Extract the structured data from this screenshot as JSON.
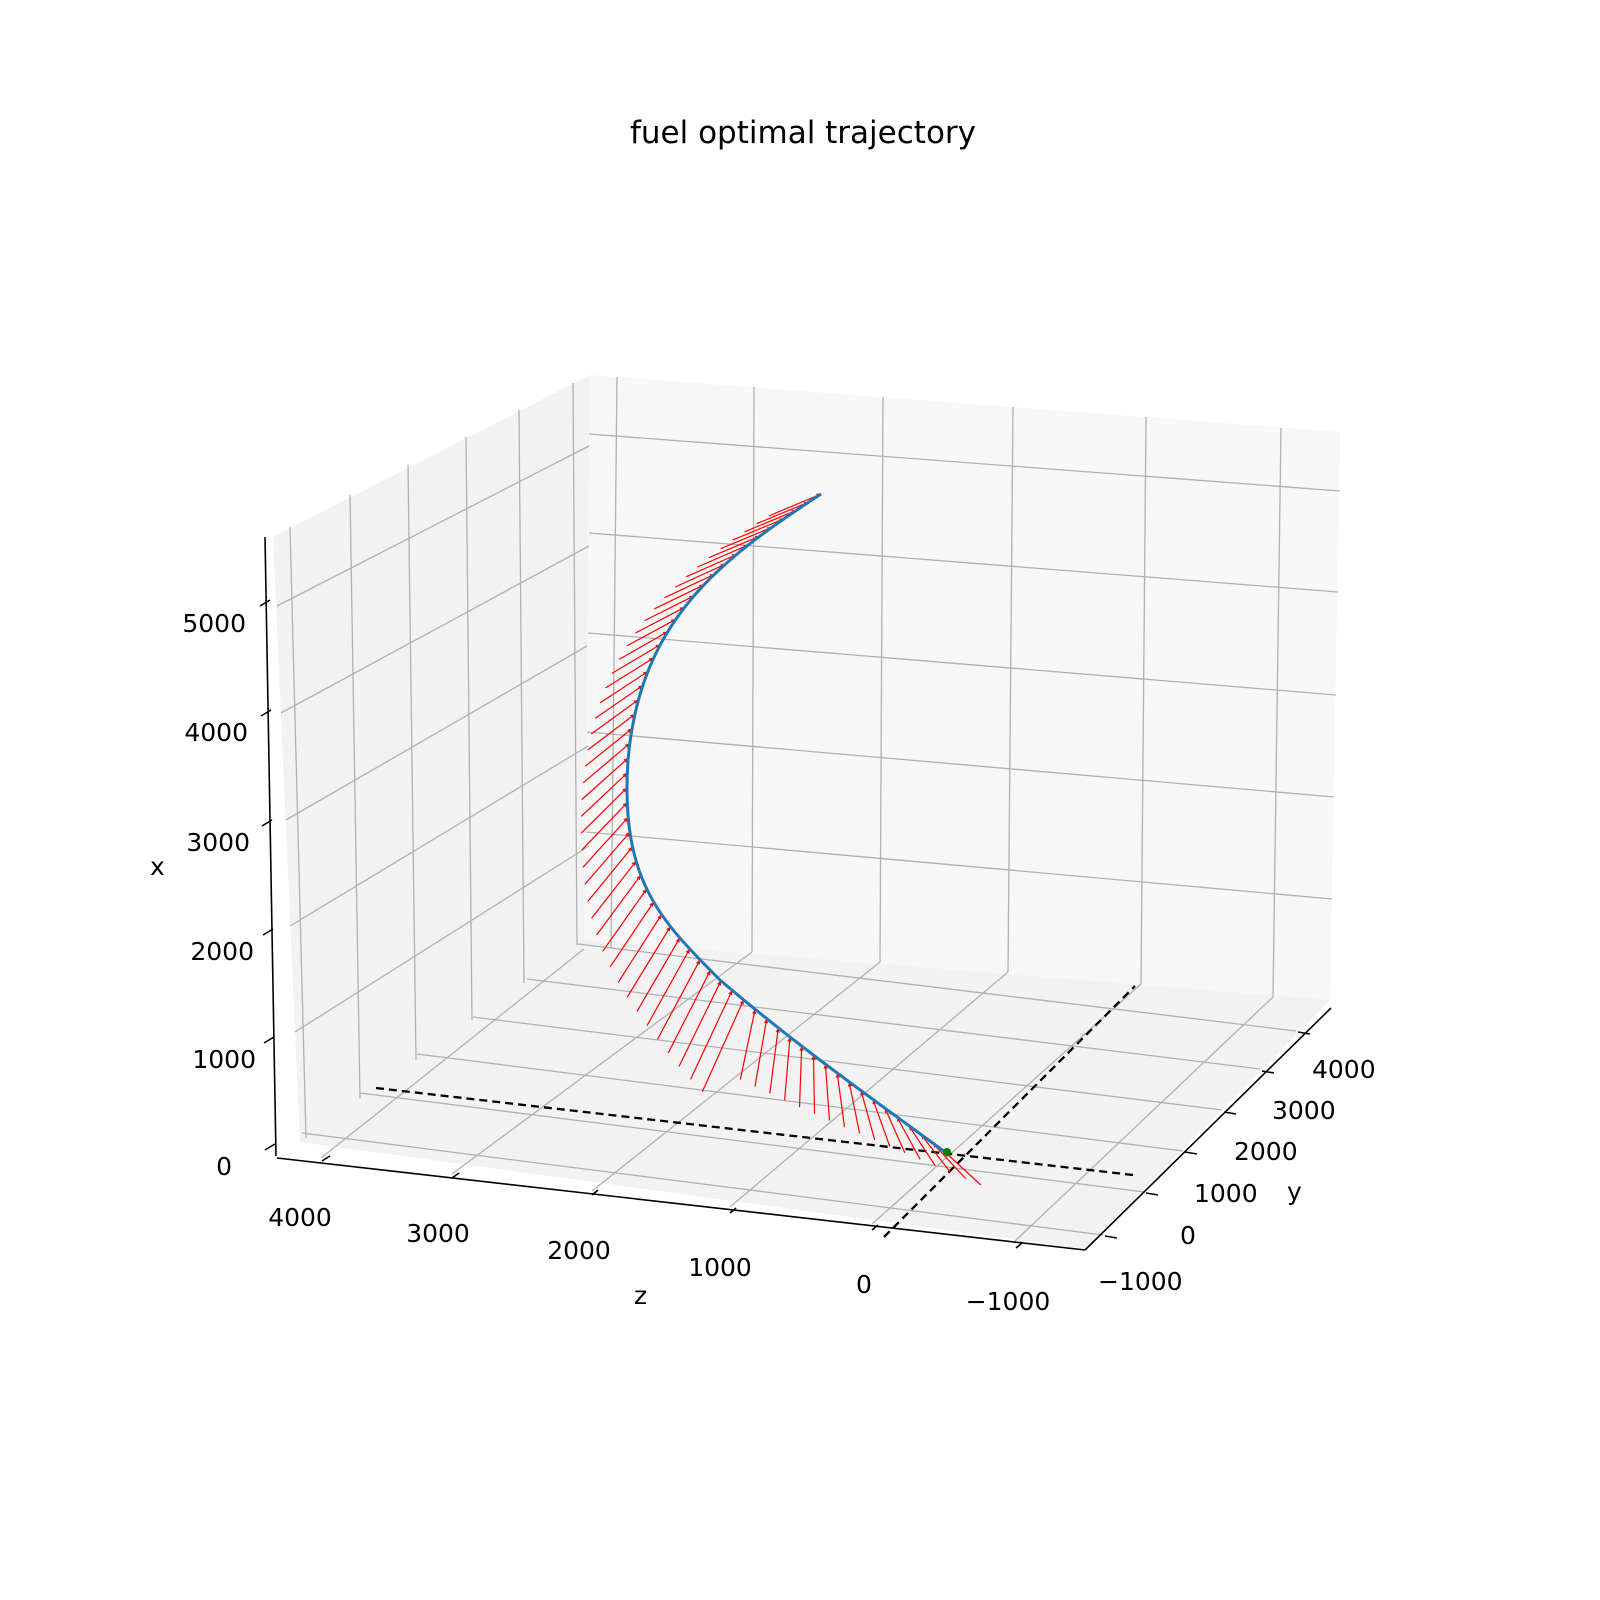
{
  "chart_data": {
    "type": "line3d",
    "title": "fuel optimal trajectory",
    "xlabel": "x",
    "ylabel": "y",
    "zlabel": "z",
    "x_ticks": [
      "0",
      "1000",
      "2000",
      "3000",
      "4000",
      "5000"
    ],
    "y_ticks": [
      "−1000",
      "0",
      "1000",
      "2000",
      "3000",
      "4000"
    ],
    "z_ticks": [
      "4000",
      "3000",
      "2000",
      "1000",
      "0",
      "−1000"
    ],
    "xlim": [
      0,
      5500
    ],
    "ylim": [
      -1300,
      4300
    ],
    "zlim": [
      -1500,
      4300
    ],
    "grid": true,
    "series": [
      {
        "type": "line",
        "color": "#1f77b4",
        "points": [
          [
            5100,
            2650,
            850
          ],
          [
            4700,
            2700,
            1400
          ],
          [
            4200,
            2600,
            1800
          ],
          [
            3700,
            2300,
            1850
          ],
          [
            3300,
            1900,
            1650
          ],
          [
            2800,
            1400,
            1300
          ],
          [
            2300,
            900,
            900
          ],
          [
            1800,
            500,
            450
          ],
          [
            1200,
            250,
            150
          ],
          [
            600,
            100,
            20
          ],
          [
            0,
            0,
            0
          ]
        ]
      },
      {
        "type": "quiver",
        "color": "#ff0000",
        "count": 60
      },
      {
        "type": "marker",
        "color": "#008000",
        "point": [
          0,
          0,
          0
        ]
      },
      {
        "type": "reference-lines",
        "style": "dashed",
        "color": "#000000"
      }
    ]
  }
}
